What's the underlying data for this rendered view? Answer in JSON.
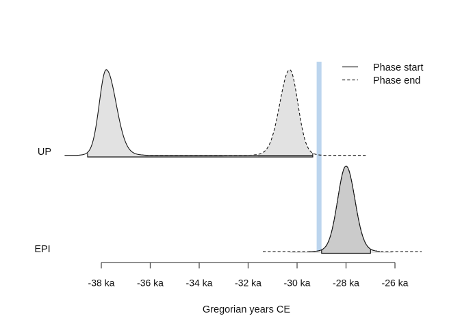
{
  "chart_data": {
    "type": "area",
    "subtype": "bayesian-phase-density-plot",
    "title": "",
    "xlabel": "Gregorian years CE",
    "x_unit": "ka",
    "x_ticks": [
      {
        "label": "-38 ka",
        "value_ka": -38
      },
      {
        "label": "-36 ka",
        "value_ka": -36
      },
      {
        "label": "-34 ka",
        "value_ka": -34
      },
      {
        "label": "-32 ka",
        "value_ka": -32
      },
      {
        "label": "-30 ka",
        "value_ka": -30
      },
      {
        "label": "-28 ka",
        "value_ka": -28
      },
      {
        "label": "-26 ka",
        "value_ka": -26
      }
    ],
    "xlim_ka": [
      -39.7,
      -24.8
    ],
    "grid": false,
    "legend": {
      "position": "top-right",
      "entries": [
        {
          "label": "Phase start",
          "style": "solid"
        },
        {
          "label": "Phase end",
          "style": "dashed"
        }
      ]
    },
    "event_marker": {
      "from_ka": -29.2,
      "to_ka": -29.0,
      "color": "#bcd5ee"
    },
    "rows": [
      {
        "label": "UP",
        "start_density": {
          "peak_ka": -37.8,
          "sd_left_ka": 0.28,
          "sd_right_ka": 0.4,
          "line": "solid",
          "range_ka": [
            -39.5,
            -29.36
          ]
        },
        "end_density": {
          "peak_ka": -30.3,
          "sd_left_ka": 0.4,
          "sd_right_ka": 0.33,
          "line": "dashed",
          "range_ka": [
            -36.2,
            -27.15
          ]
        },
        "hpd_ka": [
          -38.56,
          -29.36
        ],
        "fills": [
          {
            "curve": "start",
            "from_ka": -38.56,
            "to_ka": -33.0,
            "color": "#e2e2e2"
          },
          {
            "curve": "end",
            "from_ka": -31.6,
            "to_ka": -29.36,
            "color": "#e2e2e2"
          }
        ]
      },
      {
        "label": "EPI",
        "start_density": {
          "peak_ka": -28.0,
          "sd_left_ka": 0.34,
          "sd_right_ka": 0.36,
          "line": "solid",
          "range_ka": [
            -29.5,
            -26.6
          ]
        },
        "end_density": {
          "peak_ka": -28.0,
          "sd_left_ka": 0.34,
          "sd_right_ka": 0.36,
          "line": "dashed",
          "range_ka": [
            -31.4,
            -24.9
          ]
        },
        "hpd_ka": [
          -29.0,
          -27.0
        ],
        "fills": [
          {
            "curve": "end",
            "from_ka": -30.3,
            "to_ka": -26.1,
            "color": "#e2e2e2"
          },
          {
            "curve": "end",
            "from_ka": -29.0,
            "to_ka": -27.0,
            "color": "#cbcbcb"
          }
        ]
      }
    ],
    "colors": {
      "curve": "#151515",
      "axis": "#4d4d4d",
      "fill_light": "#e2e2e2",
      "fill_dark": "#cbcbcb",
      "marker_blue": "#bcd5ee",
      "text": "#111111",
      "background": "#ffffff"
    }
  }
}
